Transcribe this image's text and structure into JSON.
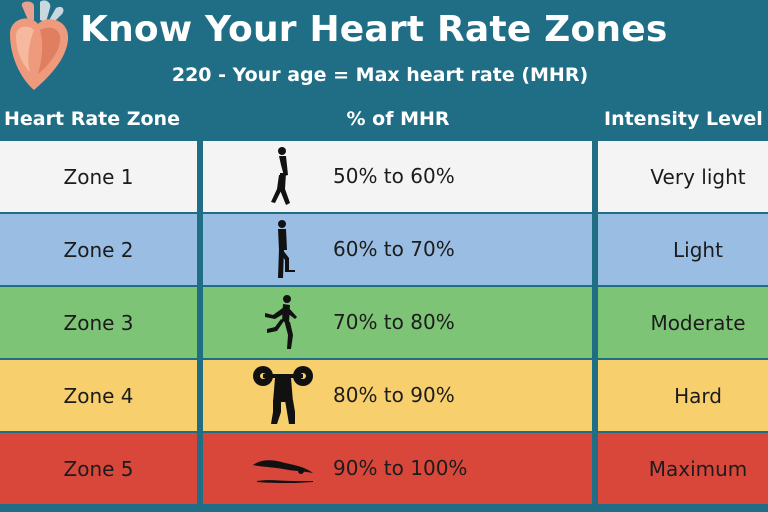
{
  "header": {
    "title": "Know Your Heart Rate Zones",
    "subtitle": "220 - Your age = Max heart rate (MHR)"
  },
  "columns": [
    "Heart Rate Zone",
    "% of MHR",
    "Intensity Level"
  ],
  "rows": [
    {
      "zone": "Zone 1",
      "percent": "50% to 60%",
      "intensity": "Very light",
      "color": "#f4f4f4",
      "icon": "walking-person-icon"
    },
    {
      "zone": "Zone 2",
      "percent": "60% to 70%",
      "intensity": "Light",
      "color": "#9abde3",
      "icon": "stair-climbing-person-icon"
    },
    {
      "zone": "Zone 3",
      "percent": "70% to 80%",
      "intensity": "Moderate",
      "color": "#7dc476",
      "icon": "running-person-icon"
    },
    {
      "zone": "Zone 4",
      "percent": "80% to 90%",
      "intensity": "Hard",
      "color": "#f7cf6d",
      "icon": "weightlifting-person-icon"
    },
    {
      "zone": "Zone 5",
      "percent": "90% to 100%",
      "intensity": "Maximum",
      "color": "#d9473b",
      "icon": "swimming-person-icon"
    }
  ],
  "colors": {
    "background": "#1f6e86",
    "divider": "#1f6e86"
  }
}
